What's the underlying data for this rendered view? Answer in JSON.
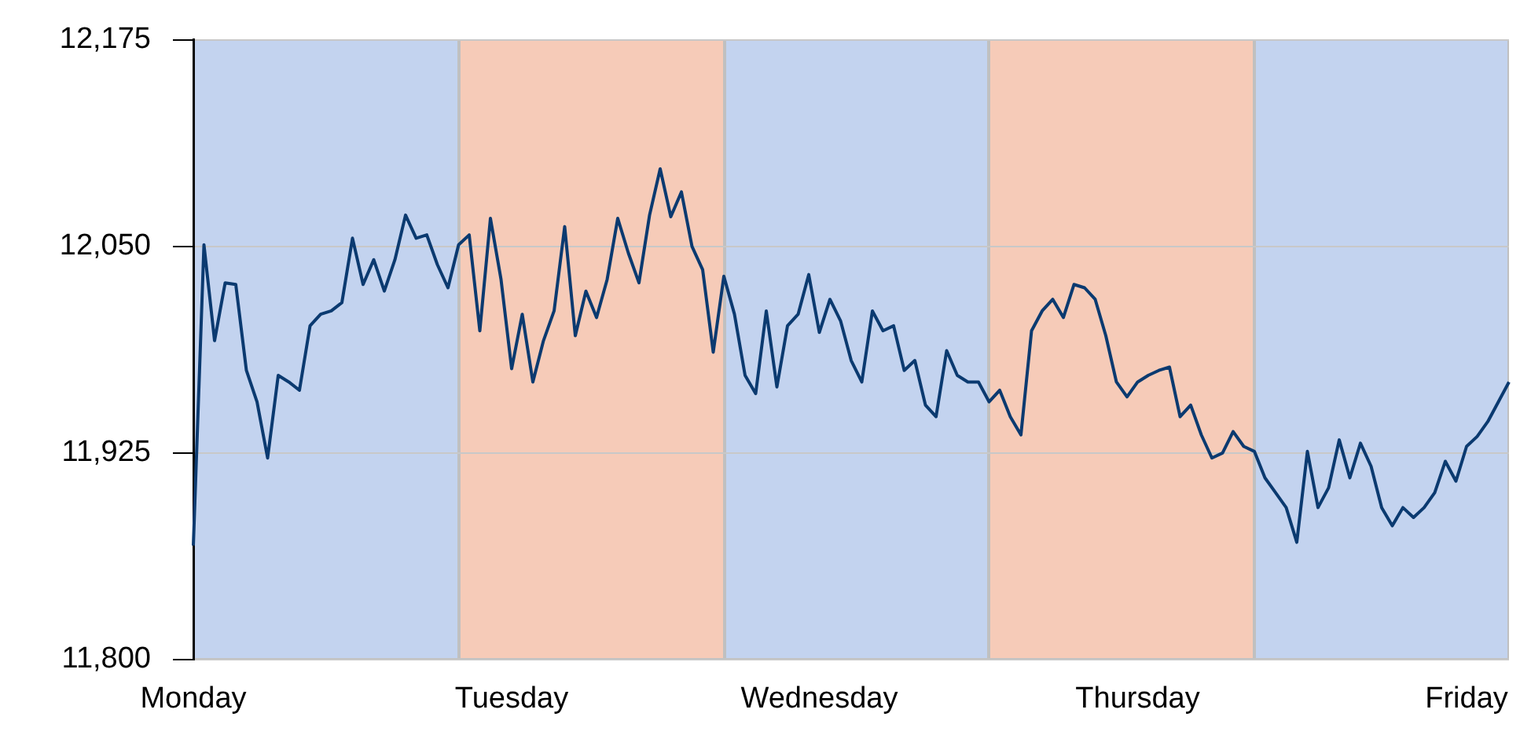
{
  "chart_data": {
    "type": "line",
    "categories": [
      "Monday",
      null,
      null,
      null,
      null,
      null,
      null,
      null,
      null,
      null,
      null,
      null,
      null,
      null,
      null,
      null,
      null,
      null,
      null,
      null,
      null,
      null,
      null,
      null,
      null,
      null,
      null,
      null,
      null,
      null,
      "Tuesday",
      null,
      null,
      null,
      null,
      null,
      null,
      null,
      null,
      null,
      null,
      null,
      null,
      null,
      null,
      null,
      null,
      null,
      null,
      null,
      null,
      null,
      null,
      null,
      null,
      null,
      null,
      null,
      null,
      "Wednesday",
      null,
      null,
      null,
      null,
      null,
      null,
      null,
      null,
      null,
      null,
      null,
      null,
      null,
      null,
      null,
      null,
      null,
      null,
      null,
      null,
      null,
      null,
      null,
      null,
      null,
      null,
      null,
      null,
      null,
      "Thursday",
      null,
      null,
      null,
      null,
      null,
      null,
      null,
      null,
      null,
      null,
      null,
      null,
      null,
      null,
      null,
      null,
      null,
      null,
      null,
      null,
      null,
      null,
      null,
      null,
      null,
      null,
      null,
      null,
      null,
      null,
      "Friday",
      null,
      null,
      null,
      null
    ],
    "series": [
      {
        "color": "#0b3a70",
        "values": [
          11869,
          12051,
          11993,
          12028,
          12027,
          11975,
          11956,
          11922,
          11972,
          11968,
          11963,
          12002,
          12009,
          12011,
          12016,
          12055,
          12027,
          12042,
          12023,
          12042,
          12069,
          12055,
          12057,
          12039,
          12025,
          12051,
          12057,
          11999,
          12067,
          12030,
          11976,
          12009,
          11968,
          11993,
          12011,
          12062,
          11996,
          12023,
          12007,
          12030,
          12067,
          12046,
          12028,
          12069,
          12097,
          12068,
          12083,
          12050,
          12036,
          11986,
          12032,
          12009,
          11972,
          11961,
          12011,
          11965,
          12002,
          12009,
          12033,
          11998,
          12018,
          12005,
          11981,
          11968,
          12011,
          11999,
          12002,
          11975,
          11981,
          11954,
          11947,
          11987,
          11972,
          11968,
          11968,
          11956,
          11963,
          11947,
          11936,
          11999,
          12011,
          12018,
          12007,
          12027,
          12025,
          12018,
          11996,
          11968,
          11959,
          11968,
          11972,
          11975,
          11977,
          11947,
          11954,
          11936,
          11922,
          11925,
          11938,
          11929,
          11926,
          11910,
          11901,
          11892,
          11871,
          11926,
          11892,
          11904,
          11933,
          11910,
          11931,
          11917,
          11892,
          11881,
          11892,
          11886,
          11892,
          11901,
          11920,
          11908,
          11929,
          11935,
          11944,
          11956,
          11968
        ]
      }
    ],
    "ylim": [
      11800,
      12175
    ],
    "yticks": [
      {
        "value": 11800,
        "label": "11,800"
      },
      {
        "value": 11925,
        "label": "11,925"
      },
      {
        "value": 12050,
        "label": "12,050"
      },
      {
        "value": 12175,
        "label": "12,175"
      }
    ],
    "grid": "y",
    "legend": false,
    "marker": "none",
    "line_style": "solid"
  }
}
